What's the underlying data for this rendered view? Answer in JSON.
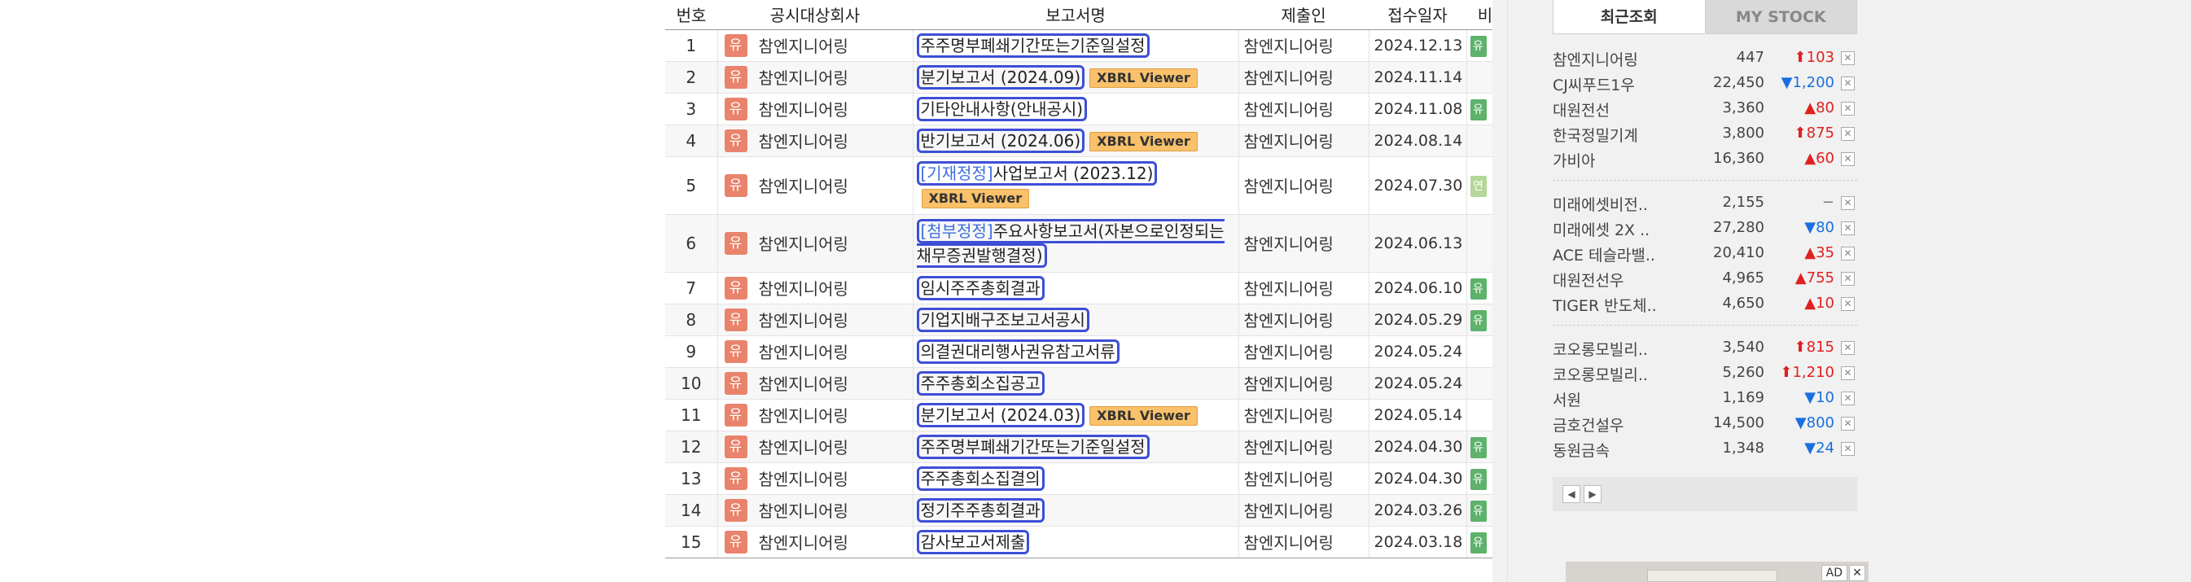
{
  "table": {
    "headers": {
      "num": "번호",
      "company": "공시대상회사",
      "report": "보고서명",
      "submitter": "제출인",
      "date": "접수일자",
      "etc": "비"
    },
    "rows": [
      {
        "num": "1",
        "badge": "유",
        "company": "참엔지니어링",
        "tag": "",
        "report": "주주명부폐쇄기간또는기준일설정",
        "xbrl": "",
        "submitter": "참엔지니어링",
        "date": "2024.12.13",
        "note": "유"
      },
      {
        "num": "2",
        "badge": "유",
        "company": "참엔지니어링",
        "tag": "",
        "report": "분기보고서 (2024.09)",
        "xbrl": "XBRL Viewer",
        "submitter": "참엔지니어링",
        "date": "2024.11.14",
        "note": ""
      },
      {
        "num": "3",
        "badge": "유",
        "company": "참엔지니어링",
        "tag": "",
        "report": "기타안내사항(안내공시)",
        "xbrl": "",
        "submitter": "참엔지니어링",
        "date": "2024.11.08",
        "note": "유"
      },
      {
        "num": "4",
        "badge": "유",
        "company": "참엔지니어링",
        "tag": "",
        "report": "반기보고서 (2024.06)",
        "xbrl": "XBRL Viewer",
        "submitter": "참엔지니어링",
        "date": "2024.08.14",
        "note": ""
      },
      {
        "num": "5",
        "badge": "유",
        "company": "참엔지니어링",
        "tag": "[기재정정]",
        "report": "사업보고서 (2023.12)",
        "xbrl": "XBRL Viewer",
        "submitter": "참엔지니어링",
        "date": "2024.07.30",
        "note": "연"
      },
      {
        "num": "6",
        "badge": "유",
        "company": "참엔지니어링",
        "tag": "[첨부정정]",
        "report": "주요사항보고서(자본으로인정되는채무증권발행결정)",
        "xbrl": "",
        "submitter": "참엔지니어링",
        "date": "2024.06.13",
        "note": ""
      },
      {
        "num": "7",
        "badge": "유",
        "company": "참엔지니어링",
        "tag": "",
        "report": "임시주주총회결과",
        "xbrl": "",
        "submitter": "참엔지니어링",
        "date": "2024.06.10",
        "note": "유"
      },
      {
        "num": "8",
        "badge": "유",
        "company": "참엔지니어링",
        "tag": "",
        "report": "기업지배구조보고서공시",
        "xbrl": "",
        "submitter": "참엔지니어링",
        "date": "2024.05.29",
        "note": "유"
      },
      {
        "num": "9",
        "badge": "유",
        "company": "참엔지니어링",
        "tag": "",
        "report": "의결권대리행사권유참고서류",
        "xbrl": "",
        "submitter": "참엔지니어링",
        "date": "2024.05.24",
        "note": ""
      },
      {
        "num": "10",
        "badge": "유",
        "company": "참엔지니어링",
        "tag": "",
        "report": "주주총회소집공고",
        "xbrl": "",
        "submitter": "참엔지니어링",
        "date": "2024.05.24",
        "note": ""
      },
      {
        "num": "11",
        "badge": "유",
        "company": "참엔지니어링",
        "tag": "",
        "report": "분기보고서 (2024.03)",
        "xbrl": "XBRL Viewer",
        "submitter": "참엔지니어링",
        "date": "2024.05.14",
        "note": ""
      },
      {
        "num": "12",
        "badge": "유",
        "company": "참엔지니어링",
        "tag": "",
        "report": "주주명부폐쇄기간또는기준일설정",
        "xbrl": "",
        "submitter": "참엔지니어링",
        "date": "2024.04.30",
        "note": "유"
      },
      {
        "num": "13",
        "badge": "유",
        "company": "참엔지니어링",
        "tag": "",
        "report": "주주총회소집결의",
        "xbrl": "",
        "submitter": "참엔지니어링",
        "date": "2024.04.30",
        "note": "유"
      },
      {
        "num": "14",
        "badge": "유",
        "company": "참엔지니어링",
        "tag": "",
        "report": "정기주주총회결과",
        "xbrl": "",
        "submitter": "참엔지니어링",
        "date": "2024.03.26",
        "note": "유"
      },
      {
        "num": "15",
        "badge": "유",
        "company": "참엔지니어링",
        "tag": "",
        "report": "감사보고서제출",
        "xbrl": "",
        "submitter": "참엔지니어링",
        "date": "2024.03.18",
        "note": "유"
      }
    ]
  },
  "sidebar": {
    "tabs": [
      "최근조회",
      "MY STOCK"
    ],
    "groups": [
      [
        {
          "name": "참엔지니어링",
          "price": "447",
          "dir": "up",
          "arrow": "⬆",
          "change": "103"
        },
        {
          "name": "CJ씨푸드1우",
          "price": "22,450",
          "dir": "dn",
          "arrow": "▼",
          "change": "1,200"
        },
        {
          "name": "대원전선",
          "price": "3,360",
          "dir": "up",
          "arrow": "▲",
          "change": "80"
        },
        {
          "name": "한국정밀기계",
          "price": "3,800",
          "dir": "up",
          "arrow": "⬆",
          "change": "875"
        },
        {
          "name": "가비아",
          "price": "16,360",
          "dir": "up",
          "arrow": "▲",
          "change": "60"
        }
      ],
      [
        {
          "name": "미래에셋비전..",
          "price": "2,155",
          "dir": "flat",
          "arrow": "",
          "change": "−"
        },
        {
          "name": "미래에셋 2X ..",
          "price": "27,280",
          "dir": "dn",
          "arrow": "▼",
          "change": "80"
        },
        {
          "name": "ACE 테슬라밸..",
          "price": "20,410",
          "dir": "up",
          "arrow": "▲",
          "change": "35"
        },
        {
          "name": "대원전선우",
          "price": "4,965",
          "dir": "up",
          "arrow": "▲",
          "change": "755"
        },
        {
          "name": "TIGER 반도체..",
          "price": "4,650",
          "dir": "up",
          "arrow": "▲",
          "change": "10"
        }
      ],
      [
        {
          "name": "코오롱모빌리..",
          "price": "3,540",
          "dir": "up",
          "arrow": "⬆",
          "change": "815"
        },
        {
          "name": "코오롱모빌리..",
          "price": "5,260",
          "dir": "up",
          "arrow": "⬆",
          "change": "1,210"
        },
        {
          "name": "서원",
          "price": "1,169",
          "dir": "dn",
          "arrow": "▼",
          "change": "10"
        },
        {
          "name": "금호건설우",
          "price": "14,500",
          "dir": "dn",
          "arrow": "▼",
          "change": "800"
        },
        {
          "name": "동원금속",
          "price": "1,348",
          "dir": "dn",
          "arrow": "▼",
          "change": "24"
        }
      ]
    ],
    "remove_glyph": "✕",
    "pager": {
      "prev": "◀",
      "next": "▶"
    },
    "ad": {
      "label": "AD",
      "close": "✕"
    }
  }
}
